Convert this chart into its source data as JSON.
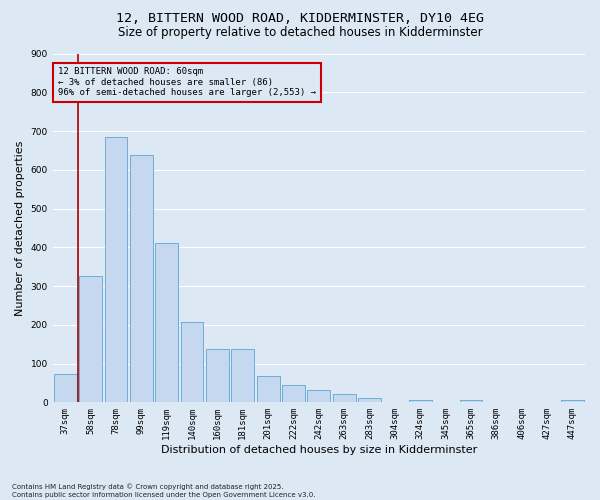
{
  "title": "12, BITTERN WOOD ROAD, KIDDERMINSTER, DY10 4EG",
  "subtitle": "Size of property relative to detached houses in Kidderminster",
  "xlabel": "Distribution of detached houses by size in Kidderminster",
  "ylabel": "Number of detached properties",
  "categories": [
    "37sqm",
    "58sqm",
    "78sqm",
    "99sqm",
    "119sqm",
    "140sqm",
    "160sqm",
    "181sqm",
    "201sqm",
    "222sqm",
    "242sqm",
    "263sqm",
    "283sqm",
    "304sqm",
    "324sqm",
    "345sqm",
    "365sqm",
    "386sqm",
    "406sqm",
    "427sqm",
    "447sqm"
  ],
  "values": [
    72,
    325,
    685,
    638,
    410,
    208,
    137,
    137,
    68,
    45,
    32,
    22,
    11,
    0,
    5,
    0,
    6,
    0,
    0,
    0,
    7
  ],
  "bar_color": "#c5d8f0",
  "bar_edge_color": "#6aaed6",
  "annotation_text": "12 BITTERN WOOD ROAD: 60sqm\n← 3% of detached houses are smaller (86)\n96% of semi-detached houses are larger (2,553) →",
  "vline_color": "#aa0000",
  "annotation_box_edge_color": "#cc0000",
  "ylim": [
    0,
    900
  ],
  "yticks": [
    0,
    100,
    200,
    300,
    400,
    500,
    600,
    700,
    800,
    900
  ],
  "bg_color": "#dde8f5",
  "grid_color": "#ffffff",
  "footer": "Contains HM Land Registry data © Crown copyright and database right 2025.\nContains public sector information licensed under the Open Government Licence v3.0.",
  "title_fontsize": 9.5,
  "subtitle_fontsize": 8.5,
  "ylabel_fontsize": 8,
  "xlabel_fontsize": 8,
  "tick_fontsize": 6.5,
  "ann_fontsize": 6.5,
  "footer_fontsize": 5
}
